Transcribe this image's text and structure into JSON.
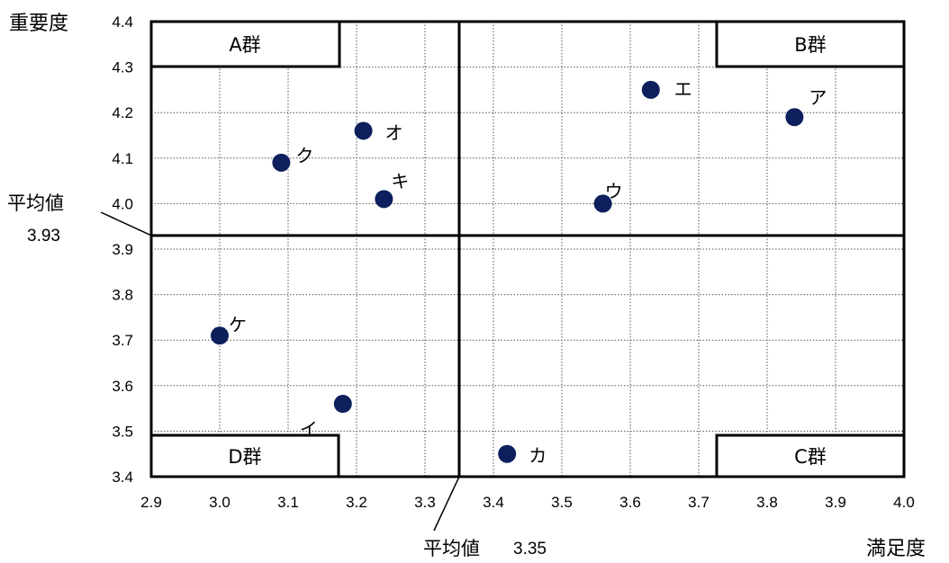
{
  "chart_data": {
    "type": "scatter",
    "xlabel": "満足度",
    "ylabel": "重要度",
    "xlim": [
      2.9,
      4.0
    ],
    "ylim": [
      3.4,
      4.4
    ],
    "x_ticks": [
      "2.9",
      "3.0",
      "3.1",
      "3.2",
      "3.3",
      "3.4",
      "3.5",
      "3.6",
      "3.7",
      "3.8",
      "3.9",
      "4.0"
    ],
    "y_ticks": [
      "3.4",
      "3.5",
      "3.6",
      "3.7",
      "3.8",
      "3.9",
      "4.0",
      "4.1",
      "4.2",
      "4.3",
      "4.4"
    ],
    "grid": true,
    "point_color": "#0d1f5c",
    "points": [
      {
        "label": "ア",
        "x": 3.84,
        "y": 4.19
      },
      {
        "label": "イ",
        "x": 3.18,
        "y": 3.56
      },
      {
        "label": "ウ",
        "x": 3.56,
        "y": 4.0
      },
      {
        "label": "エ",
        "x": 3.63,
        "y": 4.25
      },
      {
        "label": "オ",
        "x": 3.21,
        "y": 4.16
      },
      {
        "label": "カ",
        "x": 3.42,
        "y": 3.45
      },
      {
        "label": "キ",
        "x": 3.24,
        "y": 4.01
      },
      {
        "label": "ク",
        "x": 3.09,
        "y": 4.09
      },
      {
        "label": "ケ",
        "x": 3.0,
        "y": 3.71
      }
    ],
    "mean_x": {
      "label": "平均値",
      "value": 3.35,
      "value_text": "3.35"
    },
    "mean_y": {
      "label": "平均値",
      "value": 3.93,
      "value_text": "3.93"
    },
    "groups": {
      "a": "A群",
      "b": "B群",
      "c": "C群",
      "d": "D群"
    }
  }
}
